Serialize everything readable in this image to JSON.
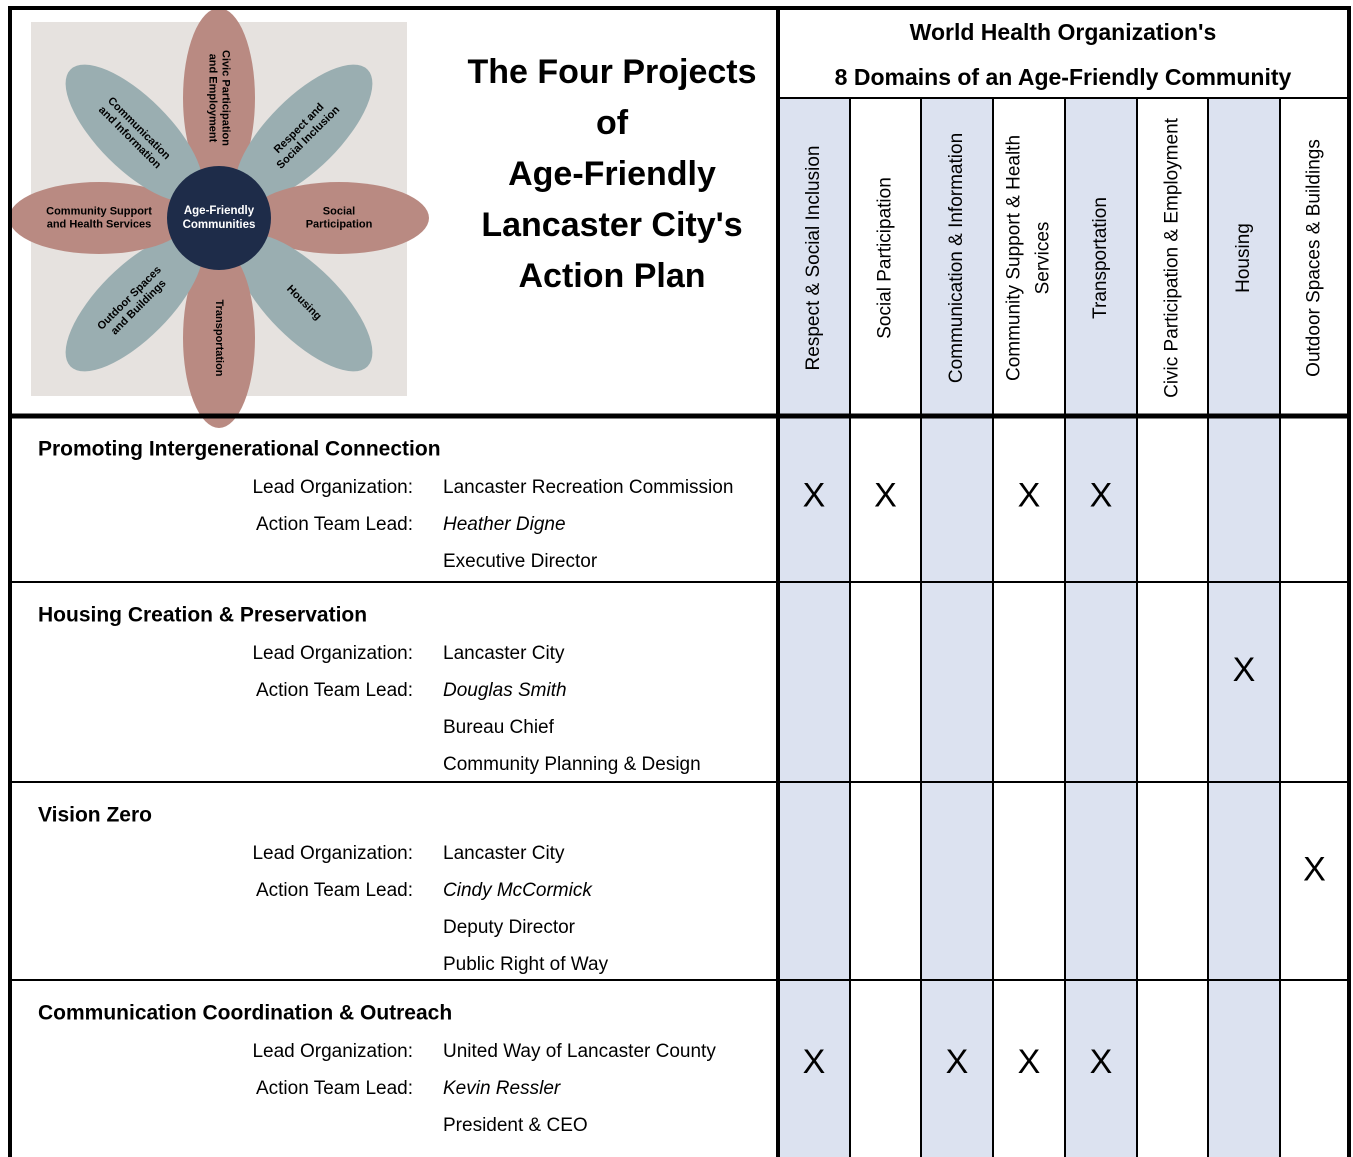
{
  "flower": {
    "center": [
      "Age-Friendly",
      "Communities"
    ],
    "petals": [
      [
        "Civic Participation",
        "and Employment"
      ],
      [
        "Respect and",
        "Social Inclusion"
      ],
      [
        "Social",
        "Participation"
      ],
      [
        "Housing"
      ],
      [
        "Transportation"
      ],
      [
        "Outdoor Spaces",
        "and Buildings"
      ],
      [
        "Community Support",
        "and Health Services"
      ],
      [
        "Communication",
        "and Information"
      ]
    ]
  },
  "title": [
    "The Four Projects",
    "of",
    "Age-Friendly",
    "Lancaster City's",
    "Action Plan"
  ],
  "domains_header": [
    "World Health Organization's",
    "8 Domains of an Age-Friendly Community"
  ],
  "domains": [
    [
      "Respect & Social Inclusion"
    ],
    [
      "Social Participation"
    ],
    [
      "Communication & Information"
    ],
    [
      "Community Support & Health",
      "Services"
    ],
    [
      "Transportation"
    ],
    [
      "Civic Participation & Employment"
    ],
    [
      "Housing"
    ],
    [
      "Outdoor Spaces & Buildings"
    ]
  ],
  "projects": [
    {
      "name": "Promoting Intergenerational Connection",
      "lead_org_label": "Lead Organization:",
      "lead_org": "Lancaster Recreation Commission",
      "team_lead_label": "Action Team Lead:",
      "team_lead": "Heather Digne",
      "details": [
        "Executive Director"
      ],
      "marks": [
        "X",
        "X",
        null,
        "X",
        "X",
        null,
        null,
        null
      ]
    },
    {
      "name": "Housing Creation & Preservation",
      "lead_org_label": "Lead Organization:",
      "lead_org": "Lancaster City",
      "team_lead_label": "Action Team Lead:",
      "team_lead": "Douglas Smith",
      "details": [
        "Bureau Chief",
        "Community Planning & Design"
      ],
      "marks": [
        null,
        null,
        null,
        null,
        null,
        null,
        "X",
        null
      ]
    },
    {
      "name": "Vision Zero",
      "lead_org_label": "Lead Organization:",
      "lead_org": "Lancaster City",
      "team_lead_label": "Action Team Lead:",
      "team_lead": "Cindy McCormick",
      "details": [
        "Deputy Director",
        "Public Right of Way"
      ],
      "marks": [
        null,
        null,
        null,
        null,
        null,
        null,
        null,
        "X"
      ]
    },
    {
      "name": "Communication Coordination & Outreach",
      "lead_org_label": "Lead Organization:",
      "lead_org": "United Way of Lancaster County",
      "team_lead_label": "Action Team Lead:",
      "team_lead": "Kevin Ressler",
      "details": [
        "President & CEO"
      ],
      "marks": [
        "X",
        null,
        "X",
        "X",
        "X",
        null,
        null,
        null
      ]
    }
  ]
}
